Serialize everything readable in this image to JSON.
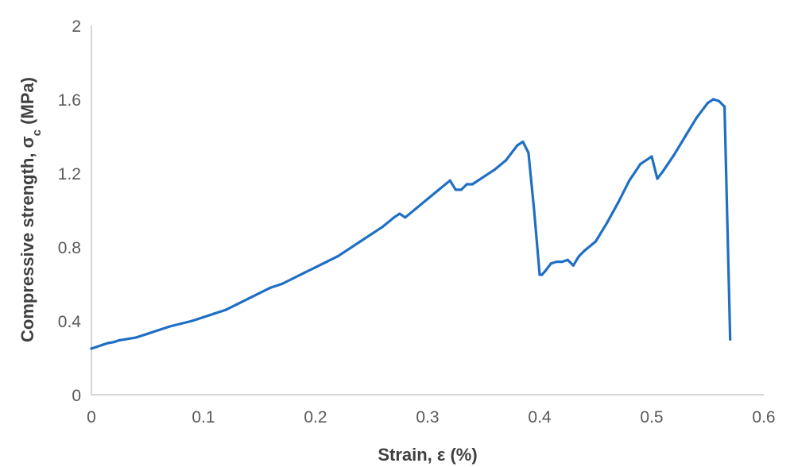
{
  "chart_data": {
    "type": "line",
    "title": "",
    "xlabel": "Strain, ε (%)",
    "ylabel_main": "Compressive strength, σ",
    "ylabel_sub": "c",
    "ylabel_unit": " (MPa)",
    "xlim": [
      0,
      0.6
    ],
    "ylim": [
      0,
      2
    ],
    "xticks": [
      "0",
      "0.1",
      "0.2",
      "0.3",
      "0.4",
      "0.5",
      "0.6"
    ],
    "yticks": [
      "0",
      "0.4",
      "0.8",
      "1.2",
      "1.6",
      "2"
    ],
    "grid": false,
    "legend": "none",
    "color": "#1f6fc4",
    "series": [
      {
        "x": [
          0,
          0.005,
          0.01,
          0.015,
          0.02,
          0.025,
          0.03,
          0.04,
          0.05,
          0.06,
          0.07,
          0.08,
          0.09,
          0.1,
          0.11,
          0.12,
          0.13,
          0.14,
          0.15,
          0.16,
          0.17,
          0.18,
          0.19,
          0.2,
          0.21,
          0.22,
          0.23,
          0.24,
          0.25,
          0.26,
          0.27,
          0.275,
          0.28,
          0.29,
          0.3,
          0.31,
          0.32,
          0.325,
          0.33,
          0.335,
          0.34,
          0.35,
          0.36,
          0.37,
          0.38,
          0.385,
          0.39,
          0.395,
          0.4,
          0.402,
          0.405,
          0.41,
          0.415,
          0.42,
          0.425,
          0.43,
          0.435,
          0.44,
          0.45,
          0.46,
          0.47,
          0.48,
          0.49,
          0.5,
          0.505,
          0.51,
          0.52,
          0.53,
          0.54,
          0.55,
          0.555,
          0.56,
          0.565,
          0.57
        ],
        "y": [
          0.25,
          0.26,
          0.27,
          0.28,
          0.285,
          0.295,
          0.3,
          0.31,
          0.33,
          0.35,
          0.37,
          0.385,
          0.4,
          0.42,
          0.44,
          0.46,
          0.49,
          0.52,
          0.55,
          0.58,
          0.6,
          0.63,
          0.66,
          0.69,
          0.72,
          0.75,
          0.79,
          0.83,
          0.87,
          0.91,
          0.96,
          0.98,
          0.96,
          1.01,
          1.06,
          1.11,
          1.16,
          1.11,
          1.11,
          1.14,
          1.14,
          1.18,
          1.22,
          1.27,
          1.35,
          1.37,
          1.31,
          1.0,
          0.65,
          0.65,
          0.67,
          0.71,
          0.72,
          0.72,
          0.73,
          0.7,
          0.75,
          0.78,
          0.83,
          0.93,
          1.04,
          1.16,
          1.25,
          1.29,
          1.17,
          1.21,
          1.3,
          1.4,
          1.5,
          1.58,
          1.6,
          1.59,
          1.56,
          0.3
        ]
      }
    ]
  }
}
